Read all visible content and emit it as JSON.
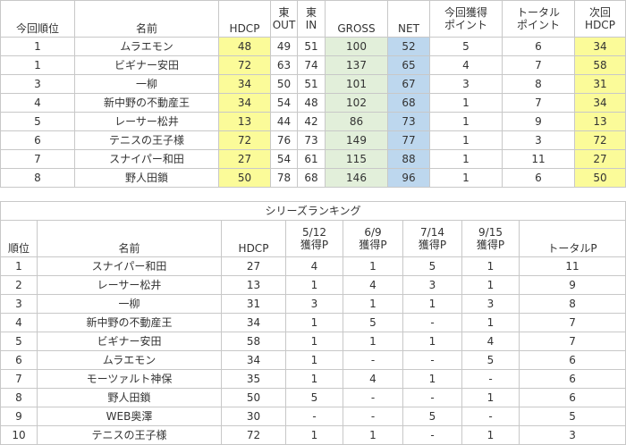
{
  "results": {
    "headers": {
      "rank": "今回順位",
      "name": "名前",
      "hdcp": "HDCP",
      "out_top": "東",
      "out_bottom": "OUT",
      "in_top": "東",
      "in_bottom": "IN",
      "gross": "GROSS",
      "net": "NET",
      "points_top": "今回獲得",
      "points_bottom": "ポイント",
      "total_top": "トータル",
      "total_bottom": "ポイント",
      "next_top": "次回",
      "next_bottom": "HDCP"
    },
    "rows": [
      {
        "rank": "1",
        "name": "ムラエモン",
        "hdcp": "48",
        "out": "49",
        "in": "51",
        "gross": "100",
        "net": "52",
        "points": "5",
        "total": "6",
        "next_hdcp": "34"
      },
      {
        "rank": "1",
        "name": "ビギナー安田",
        "hdcp": "72",
        "out": "63",
        "in": "74",
        "gross": "137",
        "net": "65",
        "points": "4",
        "total": "7",
        "next_hdcp": "58"
      },
      {
        "rank": "3",
        "name": "一柳",
        "hdcp": "34",
        "out": "50",
        "in": "51",
        "gross": "101",
        "net": "67",
        "points": "3",
        "total": "8",
        "next_hdcp": "31"
      },
      {
        "rank": "4",
        "name": "新中野の不動産王",
        "hdcp": "34",
        "out": "54",
        "in": "48",
        "gross": "102",
        "net": "68",
        "points": "1",
        "total": "7",
        "next_hdcp": "34"
      },
      {
        "rank": "5",
        "name": "レーサー松井",
        "hdcp": "13",
        "out": "44",
        "in": "42",
        "gross": "86",
        "net": "73",
        "points": "1",
        "total": "9",
        "next_hdcp": "13"
      },
      {
        "rank": "6",
        "name": "テニスの王子様",
        "hdcp": "72",
        "out": "76",
        "in": "73",
        "gross": "149",
        "net": "77",
        "points": "1",
        "total": "3",
        "next_hdcp": "72"
      },
      {
        "rank": "7",
        "name": "スナイパー和田",
        "hdcp": "27",
        "out": "54",
        "in": "61",
        "gross": "115",
        "net": "88",
        "points": "1",
        "total": "11",
        "next_hdcp": "27"
      },
      {
        "rank": "8",
        "name": "野人田鎖",
        "hdcp": "50",
        "out": "78",
        "in": "68",
        "gross": "146",
        "net": "96",
        "points": "1",
        "total": "6",
        "next_hdcp": "50"
      }
    ]
  },
  "series": {
    "title": "シリーズランキング",
    "headers": {
      "rank": "順位",
      "name": "名前",
      "hdcp": "HDCP",
      "r1_top": "5/12",
      "r1_bottom": "獲得P",
      "r2_top": "6/9",
      "r2_bottom": "獲得P",
      "r3_top": "7/14",
      "r3_bottom": "獲得P",
      "r4_top": "9/15",
      "r4_bottom": "獲得P",
      "total": "トータルP"
    },
    "rows": [
      {
        "rank": "1",
        "name": "スナイパー和田",
        "hdcp": "27",
        "r1": "4",
        "r2": "1",
        "r3": "5",
        "r4": "1",
        "total": "11"
      },
      {
        "rank": "2",
        "name": "レーサー松井",
        "hdcp": "13",
        "r1": "1",
        "r2": "4",
        "r3": "3",
        "r4": "1",
        "total": "9"
      },
      {
        "rank": "3",
        "name": "一柳",
        "hdcp": "31",
        "r1": "3",
        "r2": "1",
        "r3": "1",
        "r4": "3",
        "total": "8"
      },
      {
        "rank": "4",
        "name": "新中野の不動産王",
        "hdcp": "34",
        "r1": "1",
        "r2": "5",
        "r3": "-",
        "r4": "1",
        "total": "7"
      },
      {
        "rank": "5",
        "name": "ビギナー安田",
        "hdcp": "58",
        "r1": "1",
        "r2": "1",
        "r3": "1",
        "r4": "4",
        "total": "7"
      },
      {
        "rank": "6",
        "name": "ムラエモン",
        "hdcp": "34",
        "r1": "1",
        "r2": "-",
        "r3": "-",
        "r4": "5",
        "total": "6"
      },
      {
        "rank": "7",
        "name": "モーツァルト神保",
        "hdcp": "35",
        "r1": "1",
        "r2": "4",
        "r3": "1",
        "r4": "-",
        "total": "6"
      },
      {
        "rank": "8",
        "name": "野人田鎖",
        "hdcp": "50",
        "r1": "5",
        "r2": "-",
        "r3": "-",
        "r4": "1",
        "total": "6"
      },
      {
        "rank": "9",
        "name": "WEB奥澤",
        "hdcp": "30",
        "r1": "-",
        "r2": "-",
        "r3": "5",
        "r4": "-",
        "total": "5"
      },
      {
        "rank": "10",
        "name": "テニスの王子様",
        "hdcp": "72",
        "r1": "1",
        "r2": "1",
        "r3": "-",
        "r4": "1",
        "total": "3"
      }
    ]
  }
}
